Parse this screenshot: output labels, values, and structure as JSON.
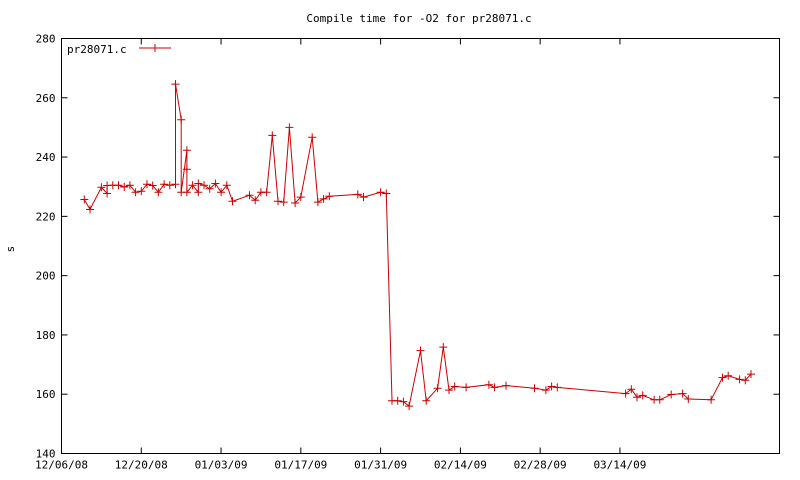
{
  "chart_data": {
    "type": "line",
    "title": "Compile time for -O2 for pr28071.c",
    "xlabel": "",
    "ylabel": "s",
    "ylim": [
      140,
      280
    ],
    "xlim": [
      "2008-12-06",
      "2009-04-11"
    ],
    "y_ticks": [
      140,
      160,
      180,
      200,
      220,
      240,
      260,
      280
    ],
    "x_ticks": [
      {
        "date": "2008-12-06",
        "label": "12/06/08"
      },
      {
        "date": "2008-12-20",
        "label": "12/20/08"
      },
      {
        "date": "2009-01-03",
        "label": "01/03/09"
      },
      {
        "date": "2009-01-17",
        "label": "01/17/09"
      },
      {
        "date": "2009-01-31",
        "label": "01/31/09"
      },
      {
        "date": "2009-02-14",
        "label": "02/14/09"
      },
      {
        "date": "2009-02-28",
        "label": "02/28/09"
      },
      {
        "date": "2009-03-14",
        "label": "03/14/09"
      }
    ],
    "grid": false,
    "legend_position": "top-left",
    "line_color": "#cc0000",
    "series": [
      {
        "name": "pr28071.c",
        "points": [
          [
            "2008-12-10",
            225.7
          ],
          [
            "2008-12-11",
            222.3
          ],
          [
            "2008-12-13",
            229.8
          ],
          [
            "2008-12-14",
            227.7
          ],
          [
            "2008-12-14",
            230.4
          ],
          [
            "2008-12-15",
            230.5
          ],
          [
            "2008-12-16",
            230.5
          ],
          [
            "2008-12-17",
            229.9
          ],
          [
            "2008-12-18",
            230.5
          ],
          [
            "2008-12-19",
            228.1
          ],
          [
            "2008-12-20",
            228.5
          ],
          [
            "2008-12-21",
            230.8
          ],
          [
            "2008-12-22",
            230.4
          ],
          [
            "2008-12-23",
            228.1
          ],
          [
            "2008-12-24",
            230.8
          ],
          [
            "2008-12-25",
            230.5
          ],
          [
            "2008-12-26",
            230.8
          ],
          [
            "2008-12-26",
            264.6
          ],
          [
            "2008-12-27",
            252.6
          ],
          [
            "2008-12-27",
            228.1
          ],
          [
            "2008-12-28",
            242.3
          ],
          [
            "2008-12-28",
            235.9
          ],
          [
            "2008-12-28",
            228.1
          ],
          [
            "2008-12-29",
            230.5
          ],
          [
            "2008-12-30",
            228.1
          ],
          [
            "2008-12-30",
            231.1
          ],
          [
            "2008-12-31",
            230.5
          ],
          [
            "2009-01-01",
            229.3
          ],
          [
            "2009-01-02",
            231.1
          ],
          [
            "2009-01-03",
            228.1
          ],
          [
            "2009-01-04",
            230.5
          ],
          [
            "2009-01-05",
            225.1
          ],
          [
            "2009-01-08",
            227.1
          ],
          [
            "2009-01-09",
            225.4
          ],
          [
            "2009-01-10",
            228.1
          ],
          [
            "2009-01-11",
            228.1
          ],
          [
            "2009-01-12",
            247.3
          ],
          [
            "2009-01-13",
            225.1
          ],
          [
            "2009-01-14",
            224.8
          ],
          [
            "2009-01-15",
            250.0
          ],
          [
            "2009-01-16",
            224.5
          ],
          [
            "2009-01-17",
            226.5
          ],
          [
            "2009-01-19",
            246.7
          ],
          [
            "2009-01-20",
            224.8
          ],
          [
            "2009-01-21",
            225.9
          ],
          [
            "2009-01-22",
            226.8
          ],
          [
            "2009-01-27",
            227.4
          ],
          [
            "2009-01-28",
            226.5
          ],
          [
            "2009-01-31",
            228.1
          ],
          [
            "2009-02-01",
            227.7
          ],
          [
            "2009-02-02",
            157.8
          ],
          [
            "2009-02-03",
            157.8
          ],
          [
            "2009-02-04",
            157.5
          ],
          [
            "2009-02-05",
            156.0
          ],
          [
            "2009-02-07",
            174.7
          ],
          [
            "2009-02-08",
            157.8
          ],
          [
            "2009-02-10",
            162.0
          ],
          [
            "2009-02-11",
            175.9
          ],
          [
            "2009-02-12",
            161.4
          ],
          [
            "2009-02-13",
            162.6
          ],
          [
            "2009-02-15",
            162.3
          ],
          [
            "2009-02-19",
            163.2
          ],
          [
            "2009-02-20",
            162.3
          ],
          [
            "2009-02-22",
            162.9
          ],
          [
            "2009-02-27",
            162.0
          ],
          [
            "2009-03-01",
            161.4
          ],
          [
            "2009-03-02",
            162.6
          ],
          [
            "2009-03-03",
            162.3
          ],
          [
            "2009-03-15",
            160.2
          ],
          [
            "2009-03-16",
            161.7
          ],
          [
            "2009-03-17",
            159.0
          ],
          [
            "2009-03-18",
            159.6
          ],
          [
            "2009-03-20",
            158.1
          ],
          [
            "2009-03-21",
            158.1
          ],
          [
            "2009-03-23",
            159.9
          ],
          [
            "2009-03-25",
            160.2
          ],
          [
            "2009-03-26",
            158.4
          ],
          [
            "2009-03-30",
            158.1
          ],
          [
            "2009-04-01",
            165.6
          ],
          [
            "2009-04-02",
            166.2
          ],
          [
            "2009-04-04",
            165.0
          ],
          [
            "2009-04-05",
            164.7
          ],
          [
            "2009-04-06",
            166.8
          ]
        ]
      }
    ]
  }
}
